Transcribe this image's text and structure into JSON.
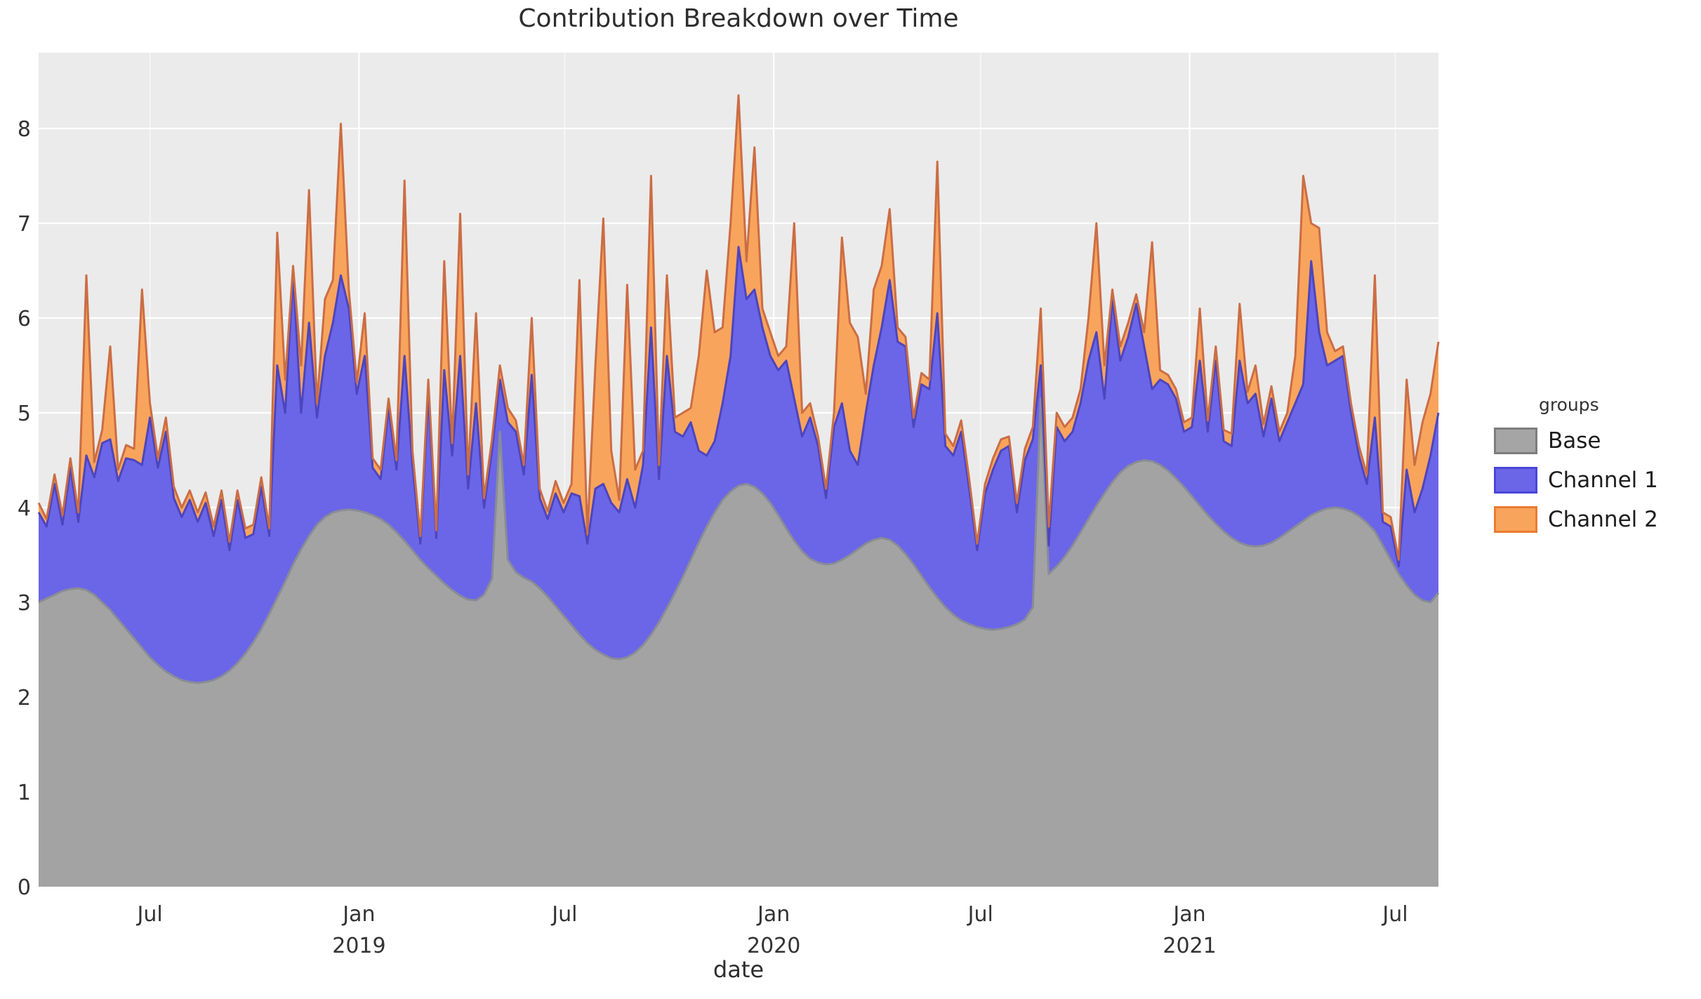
{
  "title": "Contribution Breakdown over Time",
  "axes": {
    "x_label": "date",
    "y_ticks": [
      0,
      1,
      2,
      3,
      4,
      5,
      6,
      7,
      8
    ],
    "x_ticks": [
      {
        "label": "Jul",
        "date": "2018-07-01",
        "year": ""
      },
      {
        "label": "Jan",
        "date": "2019-01-01",
        "year": "2019"
      },
      {
        "label": "Jul",
        "date": "2019-07-01",
        "year": ""
      },
      {
        "label": "Jan",
        "date": "2020-01-01",
        "year": "2020"
      },
      {
        "label": "Jul",
        "date": "2020-07-01",
        "year": ""
      },
      {
        "label": "Jan",
        "date": "2021-01-01",
        "year": "2021"
      },
      {
        "label": "Jul",
        "date": "2021-07-01",
        "year": ""
      }
    ]
  },
  "legend": {
    "title": "groups",
    "entries": [
      {
        "label": "Base",
        "fill": "#a5a5a5",
        "edge": "#7d7d7d"
      },
      {
        "label": "Channel 1",
        "fill": "#6b65e8",
        "edge": "#4a46d8"
      },
      {
        "label": "Channel 2",
        "fill": "#f9a45c",
        "edge": "#ea7c30"
      }
    ]
  },
  "colors": {
    "plot_background": "#ebebeb",
    "gridline": "#ffffff",
    "base_fill": "#a3a3a3",
    "base_edge": "#888c96",
    "channel1_fill": "#6b65e8",
    "channel1_edge": "#4d45bd",
    "channel2_fill": "#f9a45c",
    "channel2_edge": "#cb6d44",
    "tick_text": "#333333"
  },
  "chart_data": {
    "type": "area",
    "stacked": true,
    "title": "Contribution Breakdown over Time",
    "xlabel": "date",
    "ylabel": "",
    "ylim": [
      0,
      8.8
    ],
    "grid": true,
    "legend_position": "right",
    "x_start": "2018-03-25",
    "x_interval_days": 7,
    "x_end": "2021-08-08",
    "n_points": 177,
    "series": [
      {
        "name": "Base",
        "values": [
          3.0,
          3.04,
          3.08,
          3.12,
          3.14,
          3.15,
          3.13,
          3.08,
          3.0,
          2.92,
          2.82,
          2.72,
          2.62,
          2.52,
          2.42,
          2.34,
          2.27,
          2.22,
          2.18,
          2.16,
          2.15,
          2.16,
          2.18,
          2.22,
          2.28,
          2.36,
          2.46,
          2.58,
          2.72,
          2.88,
          3.05,
          3.22,
          3.4,
          3.56,
          3.7,
          3.82,
          3.9,
          3.95,
          3.97,
          3.98,
          3.97,
          3.95,
          3.92,
          3.88,
          3.82,
          3.74,
          3.65,
          3.55,
          3.45,
          3.36,
          3.28,
          3.2,
          3.13,
          3.07,
          3.03,
          3.02,
          3.08,
          3.25,
          4.8,
          3.45,
          3.32,
          3.26,
          3.22,
          3.15,
          3.06,
          2.96,
          2.86,
          2.76,
          2.66,
          2.57,
          2.5,
          2.45,
          2.41,
          2.4,
          2.42,
          2.47,
          2.55,
          2.66,
          2.79,
          2.94,
          3.1,
          3.27,
          3.45,
          3.63,
          3.8,
          3.95,
          4.08,
          4.17,
          4.23,
          4.25,
          4.22,
          4.15,
          4.05,
          3.92,
          3.78,
          3.65,
          3.54,
          3.46,
          3.42,
          3.4,
          3.41,
          3.45,
          3.5,
          3.56,
          3.62,
          3.66,
          3.68,
          3.66,
          3.6,
          3.51,
          3.4,
          3.28,
          3.16,
          3.05,
          2.95,
          2.87,
          2.81,
          2.77,
          2.74,
          2.72,
          2.71,
          2.72,
          2.74,
          2.77,
          2.82,
          2.95,
          5.15,
          3.3,
          3.38,
          3.48,
          3.6,
          3.74,
          3.88,
          4.02,
          4.15,
          4.27,
          4.37,
          4.44,
          4.48,
          4.5,
          4.49,
          4.45,
          4.39,
          4.31,
          4.22,
          4.12,
          4.02,
          3.92,
          3.83,
          3.75,
          3.68,
          3.63,
          3.6,
          3.59,
          3.6,
          3.63,
          3.68,
          3.74,
          3.8,
          3.86,
          3.92,
          3.96,
          3.99,
          4.0,
          3.99,
          3.96,
          3.91,
          3.84,
          3.75,
          3.6,
          3.45,
          3.3,
          3.18,
          3.08,
          3.02,
          3.0,
          3.1
        ]
      },
      {
        "name": "Channel 1",
        "values": [
          0.95,
          0.76,
          1.17,
          0.7,
          1.28,
          0.7,
          1.42,
          1.24,
          1.68,
          1.8,
          1.46,
          1.8,
          1.88,
          1.93,
          2.53,
          2.08,
          2.53,
          1.88,
          1.72,
          1.92,
          1.7,
          1.89,
          1.52,
          1.86,
          1.27,
          1.72,
          1.22,
          1.14,
          1.5,
          0.82,
          2.45,
          1.78,
          3.05,
          1.44,
          2.25,
          1.13,
          1.7,
          2.0,
          2.48,
          2.12,
          1.23,
          1.65,
          0.5,
          0.42,
          1.23,
          0.66,
          1.95,
          0.9,
          0.17,
          1.84,
          0.4,
          2.25,
          1.42,
          2.53,
          1.17,
          2.08,
          0.92,
          1.35,
          0.55,
          1.45,
          1.48,
          1.09,
          2.18,
          0.95,
          0.82,
          1.19,
          1.09,
          1.39,
          1.46,
          1.05,
          1.7,
          1.8,
          1.64,
          1.55,
          1.88,
          1.53,
          1.9,
          3.24,
          1.51,
          2.66,
          1.7,
          1.48,
          1.45,
          0.97,
          0.75,
          0.75,
          1.02,
          1.43,
          2.52,
          1.95,
          2.08,
          1.75,
          1.55,
          1.53,
          1.77,
          1.5,
          1.21,
          1.49,
          1.23,
          0.7,
          1.44,
          1.65,
          1.1,
          0.89,
          1.38,
          1.84,
          2.22,
          2.74,
          2.15,
          2.19,
          1.45,
          2.02,
          2.09,
          3.0,
          1.7,
          1.68,
          1.99,
          1.43,
          0.81,
          1.43,
          1.69,
          1.88,
          1.91,
          1.18,
          1.68,
          1.77,
          0.35,
          0.3,
          1.47,
          1.22,
          1.2,
          1.36,
          1.67,
          1.83,
          1.0,
          1.93,
          1.18,
          1.36,
          1.67,
          1.2,
          0.76,
          0.9,
          0.91,
          0.84,
          0.58,
          0.73,
          1.53,
          0.88,
          1.72,
          0.95,
          0.97,
          1.92,
          1.5,
          1.61,
          1.15,
          1.52,
          1.02,
          1.16,
          1.3,
          1.44,
          2.68,
          1.89,
          1.51,
          1.55,
          1.61,
          1.04,
          0.64,
          0.41,
          1.2,
          0.25,
          0.35,
          0.08,
          1.22,
          0.87,
          1.18,
          1.55,
          1.9
        ]
      },
      {
        "name": "Channel 2",
        "values": [
          0.1,
          0.08,
          0.1,
          0.1,
          0.1,
          0.1,
          1.9,
          0.16,
          0.14,
          0.98,
          0.12,
          0.14,
          0.12,
          1.85,
          0.15,
          0.1,
          0.15,
          0.12,
          0.1,
          0.1,
          0.1,
          0.11,
          0.1,
          0.1,
          0.09,
          0.1,
          0.1,
          0.1,
          0.1,
          0.08,
          1.4,
          0.35,
          0.1,
          0.5,
          1.4,
          0.15,
          0.6,
          0.45,
          1.6,
          0.2,
          0.12,
          0.45,
          0.1,
          0.1,
          0.1,
          0.1,
          1.85,
          0.15,
          0.08,
          0.15,
          0.08,
          1.15,
          0.13,
          1.5,
          0.15,
          0.95,
          0.1,
          0.12,
          0.15,
          0.15,
          0.12,
          0.1,
          0.6,
          0.1,
          0.08,
          0.13,
          0.1,
          0.1,
          2.28,
          0.1,
          1.3,
          2.8,
          0.55,
          0.13,
          2.05,
          0.4,
          0.15,
          1.6,
          0.15,
          0.85,
          0.15,
          0.25,
          0.15,
          1.0,
          1.95,
          1.15,
          0.8,
          1.4,
          1.6,
          0.4,
          1.5,
          0.2,
          0.25,
          0.15,
          0.15,
          1.85,
          0.25,
          0.15,
          0.1,
          0.1,
          0.15,
          1.75,
          1.35,
          1.35,
          0.2,
          0.8,
          0.65,
          0.75,
          0.15,
          0.1,
          0.1,
          0.12,
          0.1,
          1.6,
          0.13,
          0.1,
          0.12,
          0.1,
          0.07,
          0.1,
          0.12,
          0.12,
          0.1,
          0.1,
          0.12,
          0.13,
          0.6,
          0.2,
          0.15,
          0.15,
          0.15,
          0.15,
          0.45,
          1.15,
          0.35,
          0.1,
          0.15,
          0.15,
          0.1,
          0.15,
          1.55,
          0.1,
          0.1,
          0.1,
          0.1,
          0.1,
          0.55,
          0.12,
          0.15,
          0.12,
          0.13,
          0.6,
          0.12,
          0.3,
          0.13,
          0.13,
          0.1,
          0.1,
          0.5,
          2.2,
          0.4,
          1.1,
          0.35,
          0.1,
          0.1,
          0.1,
          0.1,
          0.1,
          1.5,
          0.1,
          0.1,
          0.07,
          0.95,
          0.5,
          0.7,
          0.65,
          0.75
        ]
      }
    ]
  }
}
